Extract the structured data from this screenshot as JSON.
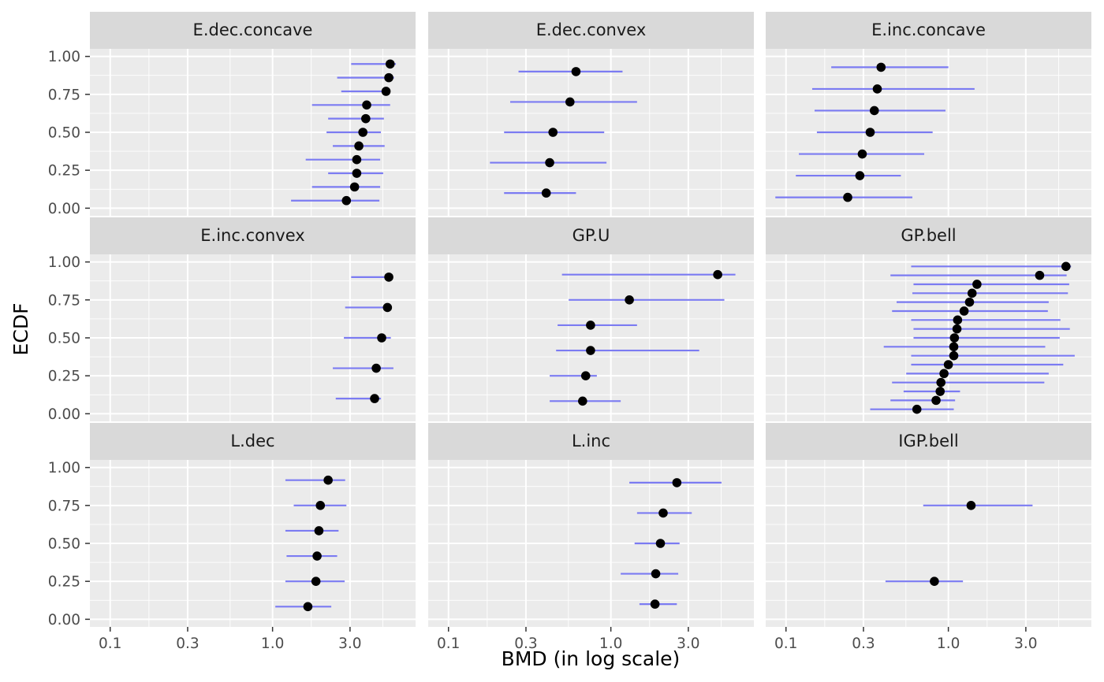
{
  "chart_data": {
    "type": "scatter",
    "title": "",
    "xlabel": "BMD (in log scale)",
    "ylabel": "ECDF",
    "x_scale": "log10",
    "xlim": [
      0.075,
      7.6
    ],
    "ylim": [
      -0.05,
      1.05
    ],
    "x_ticks": [
      0.1,
      0.3,
      1.0,
      3.0
    ],
    "x_tick_labels": [
      "0.1",
      "0.3",
      "1.0",
      "3.0"
    ],
    "y_ticks": [
      0,
      0.25,
      0.5,
      0.75,
      1.0
    ],
    "y_tick_labels": [
      "0.00",
      "0.25",
      "0.50",
      "0.75",
      "1.00"
    ],
    "grid": true,
    "colors": {
      "panel_background": "#ebebeb",
      "strip_background": "#d9d9d9",
      "grid_line": "#ffffff",
      "interval_line": "#7b7bf2",
      "point": "#000000"
    },
    "panels": [
      {
        "name": "E.dec.concave",
        "points": [
          {
            "bmd": 2.85,
            "lower": 1.3,
            "upper": 4.55,
            "ecdf": 0.05
          },
          {
            "bmd": 3.2,
            "lower": 1.75,
            "upper": 4.6,
            "ecdf": 0.14
          },
          {
            "bmd": 3.3,
            "lower": 2.2,
            "upper": 4.8,
            "ecdf": 0.23
          },
          {
            "bmd": 3.3,
            "lower": 1.6,
            "upper": 4.6,
            "ecdf": 0.32
          },
          {
            "bmd": 3.4,
            "lower": 2.35,
            "upper": 4.9,
            "ecdf": 0.41
          },
          {
            "bmd": 3.6,
            "lower": 2.15,
            "upper": 4.65,
            "ecdf": 0.5
          },
          {
            "bmd": 3.75,
            "lower": 2.2,
            "upper": 4.85,
            "ecdf": 0.59
          },
          {
            "bmd": 3.8,
            "lower": 1.75,
            "upper": 5.3,
            "ecdf": 0.68
          },
          {
            "bmd": 5.0,
            "lower": 2.65,
            "upper": 5.3,
            "ecdf": 0.77
          },
          {
            "bmd": 5.2,
            "lower": 2.5,
            "upper": 5.6,
            "ecdf": 0.86
          },
          {
            "bmd": 5.3,
            "lower": 3.05,
            "upper": 5.75,
            "ecdf": 0.95
          }
        ]
      },
      {
        "name": "E.dec.convex",
        "points": [
          {
            "bmd": 0.4,
            "lower": 0.22,
            "upper": 0.61,
            "ecdf": 0.1
          },
          {
            "bmd": 0.42,
            "lower": 0.18,
            "upper": 0.94,
            "ecdf": 0.3
          },
          {
            "bmd": 0.44,
            "lower": 0.22,
            "upper": 0.91,
            "ecdf": 0.5
          },
          {
            "bmd": 0.56,
            "lower": 0.24,
            "upper": 1.45,
            "ecdf": 0.7
          },
          {
            "bmd": 0.61,
            "lower": 0.27,
            "upper": 1.18,
            "ecdf": 0.9
          }
        ]
      },
      {
        "name": "E.inc.concave",
        "points": [
          {
            "bmd": 0.24,
            "lower": 0.086,
            "upper": 0.6,
            "ecdf": 0.0714
          },
          {
            "bmd": 0.285,
            "lower": 0.115,
            "upper": 0.51,
            "ecdf": 0.2143
          },
          {
            "bmd": 0.295,
            "lower": 0.12,
            "upper": 0.71,
            "ecdf": 0.3571
          },
          {
            "bmd": 0.33,
            "lower": 0.155,
            "upper": 0.8,
            "ecdf": 0.5
          },
          {
            "bmd": 0.35,
            "lower": 0.15,
            "upper": 0.96,
            "ecdf": 0.6429
          },
          {
            "bmd": 0.365,
            "lower": 0.145,
            "upper": 1.45,
            "ecdf": 0.7857
          },
          {
            "bmd": 0.385,
            "lower": 0.19,
            "upper": 1.0,
            "ecdf": 0.9286
          }
        ]
      },
      {
        "name": "E.inc.convex",
        "points": [
          {
            "bmd": 4.25,
            "lower": 2.45,
            "upper": 4.65,
            "ecdf": 0.1
          },
          {
            "bmd": 4.35,
            "lower": 2.35,
            "upper": 5.55,
            "ecdf": 0.3
          },
          {
            "bmd": 4.7,
            "lower": 2.75,
            "upper": 5.35,
            "ecdf": 0.5
          },
          {
            "bmd": 5.1,
            "lower": 2.8,
            "upper": 5.1,
            "ecdf": 0.7
          },
          {
            "bmd": 5.2,
            "lower": 3.05,
            "upper": 5.4,
            "ecdf": 0.9
          }
        ]
      },
      {
        "name": "GP.U",
        "points": [
          {
            "bmd": 0.67,
            "lower": 0.42,
            "upper": 1.15,
            "ecdf": 0.0833
          },
          {
            "bmd": 0.7,
            "lower": 0.42,
            "upper": 0.82,
            "ecdf": 0.25
          },
          {
            "bmd": 0.75,
            "lower": 0.46,
            "upper": 3.5,
            "ecdf": 0.4167
          },
          {
            "bmd": 0.75,
            "lower": 0.47,
            "upper": 1.45,
            "ecdf": 0.5833
          },
          {
            "bmd": 1.3,
            "lower": 0.55,
            "upper": 5.0,
            "ecdf": 0.75
          },
          {
            "bmd": 4.55,
            "lower": 0.5,
            "upper": 5.85,
            "ecdf": 0.9167
          }
        ]
      },
      {
        "name": "GP.bell",
        "points": [
          {
            "bmd": 0.64,
            "lower": 0.33,
            "upper": 1.08,
            "ecdf": 0.0294
          },
          {
            "bmd": 0.84,
            "lower": 0.44,
            "upper": 1.1,
            "ecdf": 0.0882
          },
          {
            "bmd": 0.89,
            "lower": 0.53,
            "upper": 1.18,
            "ecdf": 0.1471
          },
          {
            "bmd": 0.9,
            "lower": 0.45,
            "upper": 3.9,
            "ecdf": 0.2059
          },
          {
            "bmd": 0.94,
            "lower": 0.55,
            "upper": 4.15,
            "ecdf": 0.2647
          },
          {
            "bmd": 1.0,
            "lower": 0.59,
            "upper": 5.1,
            "ecdf": 0.3235
          },
          {
            "bmd": 1.08,
            "lower": 0.59,
            "upper": 6.0,
            "ecdf": 0.3824
          },
          {
            "bmd": 1.08,
            "lower": 0.4,
            "upper": 3.95,
            "ecdf": 0.4412
          },
          {
            "bmd": 1.09,
            "lower": 0.61,
            "upper": 4.85,
            "ecdf": 0.5
          },
          {
            "bmd": 1.13,
            "lower": 0.61,
            "upper": 5.6,
            "ecdf": 0.5588
          },
          {
            "bmd": 1.14,
            "lower": 0.59,
            "upper": 4.9,
            "ecdf": 0.6176
          },
          {
            "bmd": 1.25,
            "lower": 0.45,
            "upper": 4.1,
            "ecdf": 0.6765
          },
          {
            "bmd": 1.35,
            "lower": 0.48,
            "upper": 4.15,
            "ecdf": 0.7353
          },
          {
            "bmd": 1.4,
            "lower": 0.6,
            "upper": 5.45,
            "ecdf": 0.7941
          },
          {
            "bmd": 1.5,
            "lower": 0.61,
            "upper": 5.55,
            "ecdf": 0.8529
          },
          {
            "bmd": 3.65,
            "lower": 0.44,
            "upper": 5.35,
            "ecdf": 0.9118
          },
          {
            "bmd": 5.3,
            "lower": 0.59,
            "upper": 5.7,
            "ecdf": 0.9706
          }
        ]
      },
      {
        "name": "L.dec",
        "points": [
          {
            "bmd": 1.65,
            "lower": 1.04,
            "upper": 2.3,
            "ecdf": 0.0833
          },
          {
            "bmd": 1.85,
            "lower": 1.2,
            "upper": 2.78,
            "ecdf": 0.25
          },
          {
            "bmd": 1.88,
            "lower": 1.22,
            "upper": 2.5,
            "ecdf": 0.4167
          },
          {
            "bmd": 1.93,
            "lower": 1.2,
            "upper": 2.55,
            "ecdf": 0.5833
          },
          {
            "bmd": 1.97,
            "lower": 1.35,
            "upper": 2.85,
            "ecdf": 0.75
          },
          {
            "bmd": 2.2,
            "lower": 1.2,
            "upper": 2.8,
            "ecdf": 0.9167
          }
        ]
      },
      {
        "name": "L.inc",
        "points": [
          {
            "bmd": 1.87,
            "lower": 1.5,
            "upper": 2.55,
            "ecdf": 0.1
          },
          {
            "bmd": 1.89,
            "lower": 1.15,
            "upper": 2.6,
            "ecdf": 0.3
          },
          {
            "bmd": 2.02,
            "lower": 1.4,
            "upper": 2.65,
            "ecdf": 0.5
          },
          {
            "bmd": 2.1,
            "lower": 1.45,
            "upper": 3.15,
            "ecdf": 0.7
          },
          {
            "bmd": 2.55,
            "lower": 1.3,
            "upper": 4.8,
            "ecdf": 0.9
          }
        ]
      },
      {
        "name": "IGP.bell",
        "points": [
          {
            "bmd": 0.82,
            "lower": 0.41,
            "upper": 1.23,
            "ecdf": 0.25
          },
          {
            "bmd": 1.38,
            "lower": 0.7,
            "upper": 3.3,
            "ecdf": 0.75
          }
        ]
      }
    ]
  }
}
